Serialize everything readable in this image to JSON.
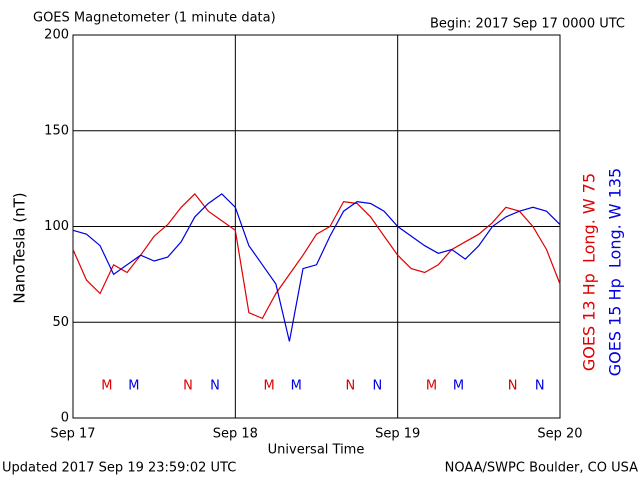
{
  "chart_data": {
    "type": "line",
    "title": "GOES Magnetometer (1 minute data)",
    "subtitle": "Begin:  2017 Sep 17 0000 UTC",
    "x_label": "Universal Time",
    "y_label": "NanoTesla (nT)",
    "footer_left": "Updated 2017 Sep 19 23:59:02 UTC",
    "footer_right": "NOAA/SWPC Boulder, CO USA",
    "grid": true,
    "xlim": [
      "2017-09-17T00:00Z",
      "2017-09-20T00:00Z"
    ],
    "xticks": [
      {
        "value": "2017-09-17T00:00Z",
        "label": "Sep 17"
      },
      {
        "value": "2017-09-18T00:00Z",
        "label": "Sep 18"
      },
      {
        "value": "2017-09-19T00:00Z",
        "label": "Sep 19"
      },
      {
        "value": "2017-09-20T00:00Z",
        "label": "Sep 20"
      }
    ],
    "ylim": [
      0,
      200
    ],
    "yticks": [
      0,
      50,
      100,
      150,
      200
    ],
    "x": [
      "2017-09-17T00:00Z",
      "2017-09-17T02:00Z",
      "2017-09-17T04:00Z",
      "2017-09-17T06:00Z",
      "2017-09-17T08:00Z",
      "2017-09-17T10:00Z",
      "2017-09-17T12:00Z",
      "2017-09-17T14:00Z",
      "2017-09-17T16:00Z",
      "2017-09-17T18:00Z",
      "2017-09-17T20:00Z",
      "2017-09-17T22:00Z",
      "2017-09-18T00:00Z",
      "2017-09-18T02:00Z",
      "2017-09-18T04:00Z",
      "2017-09-18T06:00Z",
      "2017-09-18T08:00Z",
      "2017-09-18T10:00Z",
      "2017-09-18T12:00Z",
      "2017-09-18T14:00Z",
      "2017-09-18T16:00Z",
      "2017-09-18T18:00Z",
      "2017-09-18T20:00Z",
      "2017-09-18T22:00Z",
      "2017-09-19T00:00Z",
      "2017-09-19T02:00Z",
      "2017-09-19T04:00Z",
      "2017-09-19T06:00Z",
      "2017-09-19T08:00Z",
      "2017-09-19T10:00Z",
      "2017-09-19T12:00Z",
      "2017-09-19T14:00Z",
      "2017-09-19T16:00Z",
      "2017-09-19T18:00Z",
      "2017-09-19T20:00Z",
      "2017-09-19T22:00Z",
      "2017-09-20T00:00Z"
    ],
    "series": [
      {
        "name": "GOES 13 Hp  Long. W 75",
        "color": "#e00000",
        "values": [
          88,
          72,
          65,
          80,
          76,
          85,
          95,
          101,
          110,
          117,
          108,
          103,
          98,
          55,
          52,
          65,
          75,
          85,
          96,
          100,
          113,
          112,
          105,
          95,
          85,
          78,
          76,
          80,
          88,
          92,
          96,
          102,
          110,
          108,
          100,
          88,
          70
        ]
      },
      {
        "name": "GOES 15 Hp  Long. W 135",
        "color": "#0000e0",
        "values": [
          98,
          96,
          90,
          75,
          80,
          85,
          82,
          84,
          92,
          105,
          112,
          117,
          110,
          90,
          80,
          70,
          40,
          78,
          80,
          95,
          108,
          113,
          112,
          108,
          100,
          95,
          90,
          86,
          88,
          83,
          90,
          100,
          105,
          108,
          110,
          108,
          101
        ]
      }
    ],
    "annotations": [
      {
        "text": "M",
        "x": "2017-09-17T05:00Z",
        "color": "#e00000"
      },
      {
        "text": "M",
        "x": "2017-09-17T09:00Z",
        "color": "#0000e0"
      },
      {
        "text": "N",
        "x": "2017-09-17T17:00Z",
        "color": "#e00000"
      },
      {
        "text": "N",
        "x": "2017-09-17T21:00Z",
        "color": "#0000e0"
      },
      {
        "text": "M",
        "x": "2017-09-18T05:00Z",
        "color": "#e00000"
      },
      {
        "text": "M",
        "x": "2017-09-18T09:00Z",
        "color": "#0000e0"
      },
      {
        "text": "N",
        "x": "2017-09-18T17:00Z",
        "color": "#e00000"
      },
      {
        "text": "N",
        "x": "2017-09-18T21:00Z",
        "color": "#0000e0"
      },
      {
        "text": "M",
        "x": "2017-09-19T05:00Z",
        "color": "#e00000"
      },
      {
        "text": "M",
        "x": "2017-09-19T09:00Z",
        "color": "#0000e0"
      },
      {
        "text": "N",
        "x": "2017-09-19T17:00Z",
        "color": "#e00000"
      },
      {
        "text": "N",
        "x": "2017-09-19T21:00Z",
        "color": "#0000e0"
      }
    ]
  }
}
